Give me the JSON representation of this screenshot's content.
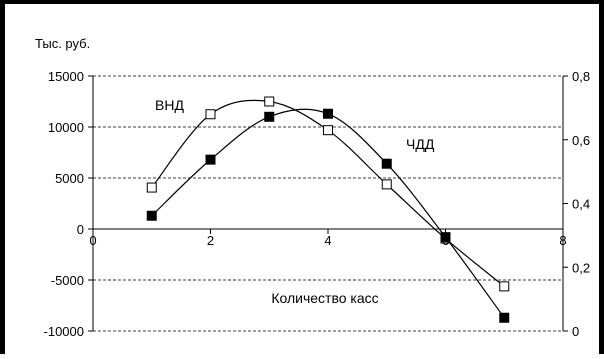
{
  "chart_data": {
    "type": "line",
    "y_unit_label": "Тыс. руб.",
    "xlabel": "Количество касс",
    "xlim": [
      0,
      8
    ],
    "x_ticks": [
      0,
      2,
      4,
      6,
      8
    ],
    "ylim_left": [
      -10000,
      15000
    ],
    "y_ticks_left": [
      -10000,
      -5000,
      0,
      5000,
      10000,
      15000
    ],
    "y_tick_labels_left": [
      "-10000",
      "-5000",
      "0",
      "5000",
      "10000",
      "15000"
    ],
    "ylim_right": [
      0,
      0.8
    ],
    "y_ticks_right": [
      0,
      0.2,
      0.4,
      0.6,
      0.8
    ],
    "y_tick_labels_right": [
      "0",
      "0,2",
      "0,4",
      "0,6",
      "0,8"
    ],
    "grid": "horizontal dashed",
    "series": [
      {
        "name": "ВНД",
        "axis": "right",
        "marker": "open-square",
        "x": [
          1,
          2,
          3,
          4,
          5,
          6,
          7
        ],
        "y": [
          0.45,
          0.68,
          0.72,
          0.63,
          0.46,
          0.29,
          0.14
        ]
      },
      {
        "name": "ЧДД",
        "axis": "left",
        "marker": "filled-square",
        "x": [
          1,
          2,
          3,
          4,
          5,
          6,
          7
        ],
        "y": [
          1300,
          6800,
          11000,
          11300,
          6400,
          -800,
          -8700
        ]
      }
    ],
    "colors": {
      "line": "#000000",
      "grid": "#000000",
      "background": "#ffffff"
    }
  }
}
